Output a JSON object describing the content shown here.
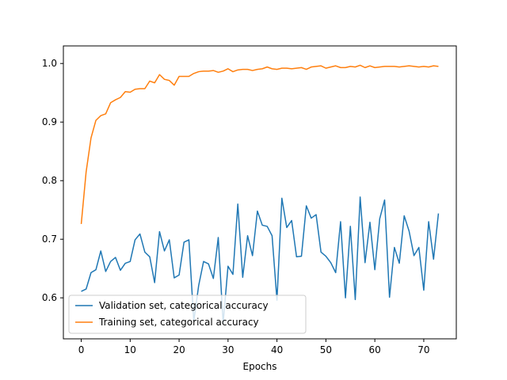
{
  "chart_data": {
    "type": "line",
    "title": "",
    "xlabel": "Epochs",
    "ylabel": "",
    "xlim": [
      -3.65,
      76.65
    ],
    "ylim": [
      0.53,
      1.03
    ],
    "xticks": [
      0,
      10,
      20,
      30,
      40,
      50,
      60,
      70
    ],
    "yticks": [
      0.6,
      0.7,
      0.8,
      0.9,
      1.0
    ],
    "ytick_labels": [
      "0.6",
      "0.7",
      "0.8",
      "0.9",
      "1.0"
    ],
    "grid": false,
    "legend_position": "lower-left",
    "series": [
      {
        "name": "Validation set, categorical accuracy",
        "color": "#1f77b4",
        "values": [
          0.611,
          0.615,
          0.643,
          0.648,
          0.68,
          0.645,
          0.662,
          0.669,
          0.647,
          0.659,
          0.662,
          0.699,
          0.709,
          0.678,
          0.67,
          0.626,
          0.713,
          0.68,
          0.699,
          0.634,
          0.639,
          0.695,
          0.699,
          0.56,
          0.621,
          0.662,
          0.658,
          0.633,
          0.703,
          0.557,
          0.654,
          0.64,
          0.76,
          0.635,
          0.706,
          0.672,
          0.748,
          0.724,
          0.722,
          0.706,
          0.596,
          0.77,
          0.72,
          0.732,
          0.67,
          0.671,
          0.757,
          0.736,
          0.742,
          0.678,
          0.671,
          0.66,
          0.643,
          0.73,
          0.6,
          0.722,
          0.597,
          0.772,
          0.66,
          0.729,
          0.648,
          0.735,
          0.767,
          0.601,
          0.686,
          0.659,
          0.74,
          0.714,
          0.672,
          0.686,
          0.613,
          0.73,
          0.666,
          0.744
        ]
      },
      {
        "name": "Training set, categorical accuracy",
        "color": "#ff7f0e",
        "values": [
          0.726,
          0.815,
          0.873,
          0.903,
          0.911,
          0.914,
          0.933,
          0.938,
          0.942,
          0.952,
          0.951,
          0.956,
          0.957,
          0.957,
          0.97,
          0.967,
          0.981,
          0.973,
          0.971,
          0.963,
          0.978,
          0.978,
          0.978,
          0.983,
          0.986,
          0.987,
          0.987,
          0.988,
          0.985,
          0.987,
          0.991,
          0.986,
          0.989,
          0.99,
          0.99,
          0.988,
          0.99,
          0.991,
          0.994,
          0.991,
          0.99,
          0.992,
          0.992,
          0.991,
          0.992,
          0.993,
          0.99,
          0.994,
          0.995,
          0.996,
          0.992,
          0.994,
          0.996,
          0.993,
          0.993,
          0.995,
          0.994,
          0.997,
          0.993,
          0.996,
          0.993,
          0.994,
          0.995,
          0.995,
          0.995,
          0.994,
          0.995,
          0.996,
          0.995,
          0.994,
          0.995,
          0.994,
          0.996,
          0.995
        ]
      }
    ]
  }
}
